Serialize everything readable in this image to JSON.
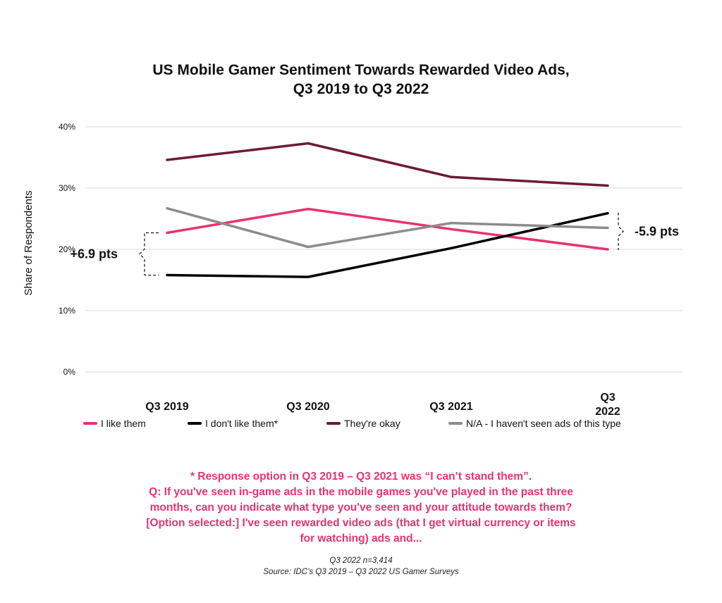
{
  "chart_data": {
    "type": "line",
    "title": "US Mobile Gamer Sentiment Towards Rewarded Video Ads, Q3 2019 to Q3 2022",
    "title_lines": [
      "US Mobile Gamer Sentiment Towards Rewarded Video Ads,",
      "Q3 2019 to Q3 2022"
    ],
    "xlabel": "",
    "ylabel": "Share of Respondents",
    "categories": [
      "Q3 2019",
      "Q3 2020",
      "Q3 2021",
      "Q3 2022"
    ],
    "category_lines": [
      [
        "Q3 2019"
      ],
      [
        "Q3 2020"
      ],
      [
        "Q3 2021"
      ],
      [
        "Q3",
        "2022"
      ]
    ],
    "ylim": [
      0,
      40
    ],
    "yticks": [
      0,
      10,
      20,
      30,
      40
    ],
    "ytick_labels": [
      "0%",
      "10%",
      "20%",
      "30%",
      "40%"
    ],
    "grid": true,
    "legend_position": "bottom",
    "series": [
      {
        "name": "I like them",
        "color": "#e8336f",
        "values": [
          22.7,
          26.6,
          23.3,
          20.0
        ]
      },
      {
        "name": "I don't like them*",
        "color": "#000000",
        "values": [
          15.8,
          15.5,
          20.2,
          25.9
        ]
      },
      {
        "name": "They're okay",
        "color": "#6e1a38",
        "values": [
          34.6,
          37.3,
          31.8,
          30.4
        ]
      },
      {
        "name": "N/A - I haven't seen ads of this type",
        "color": "#8c8c8c",
        "values": [
          26.7,
          20.4,
          24.3,
          23.5
        ]
      }
    ],
    "annotations": [
      {
        "text": "+6.9 pts",
        "at": "Q3 2019",
        "from_series": "I like them",
        "to_series": "I don't like them*"
      },
      {
        "text": "-5.9 pts",
        "at": "Q3 2022",
        "from_series": "I don't like them*",
        "to_series": "I like them"
      }
    ]
  },
  "legend": {
    "items": [
      {
        "label": "I like them",
        "color": "#e8336f"
      },
      {
        "label": "I don't like them*",
        "color": "#000000"
      },
      {
        "label": "They're okay",
        "color": "#6e1a38"
      },
      {
        "label": "N/A - I haven't seen ads of this type",
        "color": "#8c8c8c"
      }
    ]
  },
  "notes": {
    "lines": [
      "* Response option in Q3 2019 – Q3 2021 was “I can’t stand them”.",
      "Q: If you've seen in-game ads in the mobile games you've played in the past three",
      "months, can you indicate what type you've seen and your attitude towards them?",
      "[Option selected:] I've seen rewarded video ads (that I get virtual currency or items",
      "for watching) ads and..."
    ]
  },
  "footer": {
    "sample": "Q3 2022 n=3,414",
    "source": "Source: IDC’s Q3 2019 – Q3 2022 US Gamer Surveys"
  }
}
